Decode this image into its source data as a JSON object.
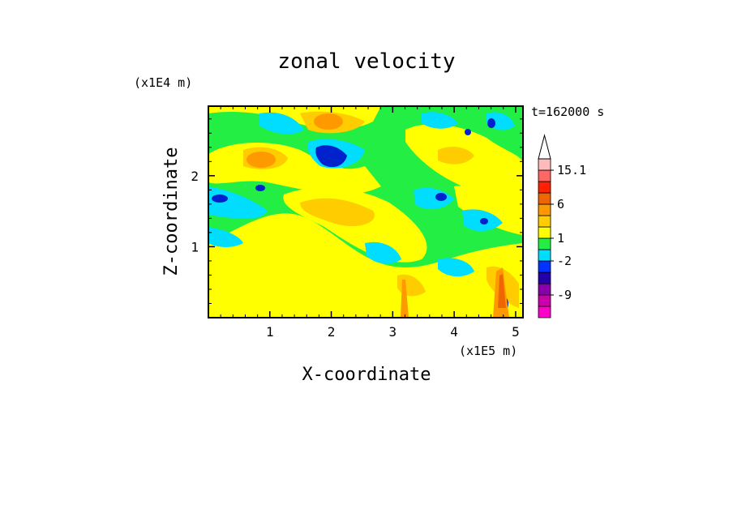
{
  "chart_data": {
    "type": "heatmap",
    "title": "zonal velocity",
    "xlabel": "X-coordinate",
    "ylabel": "Z-coordinate",
    "x_scale_label": "(x1E5 m)",
    "y_scale_label": "(x1E4 m)",
    "time_label": "t=162000 s",
    "xlim": [
      0,
      5.12
    ],
    "ylim": [
      0,
      2.98
    ],
    "x_ticks": [
      1,
      2,
      3,
      4,
      5
    ],
    "y_ticks": [
      1,
      2
    ],
    "colorbar": {
      "labels": [
        "15.1",
        "6",
        "1",
        "-2",
        "-9"
      ],
      "colors": [
        "#ff00cc",
        "#cc00aa",
        "#8800aa",
        "#2200aa",
        "#0033ff",
        "#00ddff",
        "#22ee44",
        "#ffff00",
        "#ffcc00",
        "#ff9900",
        "#ee6600",
        "#ff2200",
        "#ff6666",
        "#ffbbbb"
      ]
    },
    "palette": {
      "strong_neg": "#0022cc",
      "neg": "#00ddff",
      "near_zero": "#22ee44",
      "pos": "#ffff00",
      "pos2": "#ffcc00",
      "strong_pos": "#ff9900"
    }
  }
}
